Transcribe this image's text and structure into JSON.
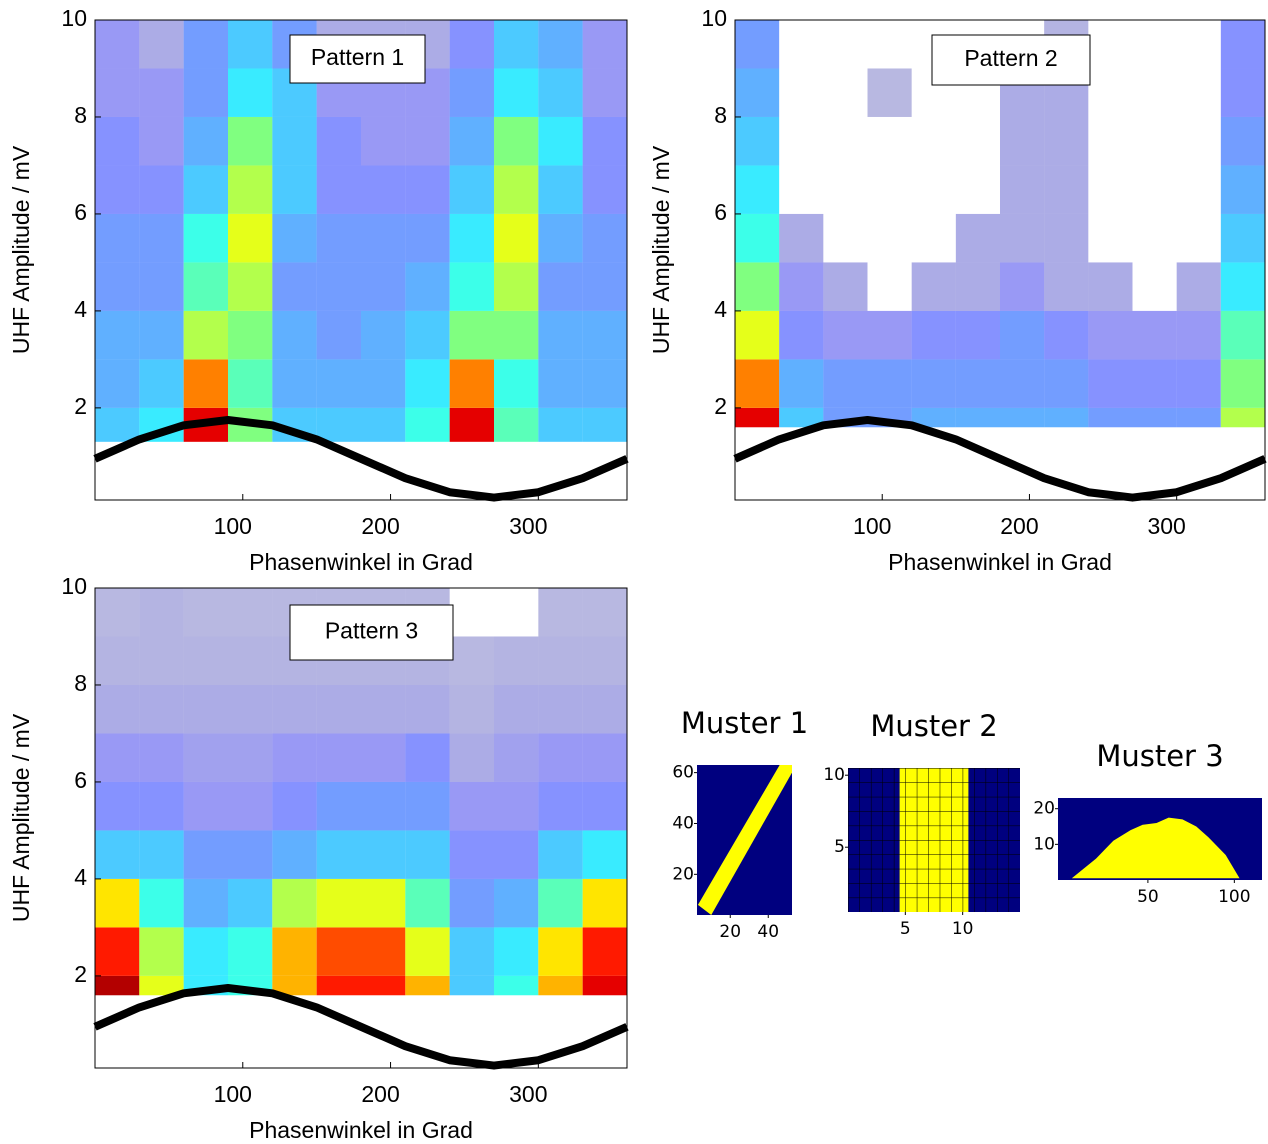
{
  "chart_data": [
    {
      "type": "heatmap",
      "annotation": "Pattern 1",
      "xlabel": "Phasenwinkel in Grad",
      "ylabel": "UHF Amplitude / mV",
      "xlim": [
        0,
        360
      ],
      "ylim": [
        0.1,
        10
      ],
      "xticks": [
        100,
        200,
        300
      ],
      "yticks": [
        2,
        4,
        6,
        8,
        10
      ],
      "xbins": [
        0,
        30,
        60,
        90,
        120,
        150,
        180,
        210,
        240,
        270,
        300,
        330,
        360
      ],
      "ybins": [
        1.3,
        2,
        3,
        4,
        5,
        6,
        7,
        8,
        9,
        10
      ],
      "density": [
        [
          0.3,
          0.35,
          0.9,
          0.5,
          0.3,
          0.3,
          0.3,
          0.4,
          0.9,
          0.45,
          0.3,
          0.3
        ],
        [
          0.25,
          0.3,
          0.75,
          0.45,
          0.25,
          0.25,
          0.25,
          0.35,
          0.75,
          0.4,
          0.25,
          0.25
        ],
        [
          0.25,
          0.25,
          0.55,
          0.5,
          0.25,
          0.2,
          0.25,
          0.3,
          0.5,
          0.5,
          0.25,
          0.25
        ],
        [
          0.2,
          0.2,
          0.45,
          0.55,
          0.2,
          0.2,
          0.2,
          0.25,
          0.4,
          0.55,
          0.2,
          0.2
        ],
        [
          0.2,
          0.2,
          0.4,
          0.6,
          0.25,
          0.2,
          0.2,
          0.2,
          0.35,
          0.6,
          0.25,
          0.2
        ],
        [
          0.15,
          0.15,
          0.3,
          0.55,
          0.3,
          0.15,
          0.15,
          0.15,
          0.3,
          0.55,
          0.3,
          0.15
        ],
        [
          0.15,
          0.1,
          0.25,
          0.5,
          0.3,
          0.15,
          0.1,
          0.1,
          0.25,
          0.5,
          0.35,
          0.15
        ],
        [
          0.1,
          0.1,
          0.2,
          0.35,
          0.3,
          0.1,
          0.1,
          0.1,
          0.2,
          0.35,
          0.3,
          0.1
        ],
        [
          0.1,
          0.05,
          0.2,
          0.3,
          0.2,
          0.05,
          0.05,
          0.05,
          0.15,
          0.3,
          0.25,
          0.1
        ]
      ],
      "x": [
        0,
        30,
        60,
        90,
        120,
        150,
        180,
        210,
        240,
        270,
        300,
        330,
        360
      ],
      "series": [
        {
          "color": "#000000",
          "values": [
            0.95,
            1.35,
            1.64,
            1.75,
            1.64,
            1.35,
            0.95,
            0.55,
            0.26,
            0.15,
            0.26,
            0.55,
            0.95
          ]
        }
      ]
    },
    {
      "type": "heatmap",
      "annotation": "Pattern 2",
      "xlabel": "Phasenwinkel in Grad",
      "ylabel": "UHF Amplitude / mV",
      "xlim": [
        0,
        360
      ],
      "ylim": [
        0.1,
        10
      ],
      "xticks": [
        100,
        200,
        300
      ],
      "yticks": [
        2,
        4,
        6,
        8,
        10
      ],
      "xbins": [
        0,
        30,
        60,
        90,
        120,
        150,
        180,
        210,
        240,
        270,
        300,
        330,
        360
      ],
      "ybins": [
        1.6,
        2,
        3,
        4,
        5,
        6,
        7,
        8,
        9,
        10
      ],
      "density": [
        [
          0.9,
          0.3,
          0.2,
          0.2,
          0.25,
          0.25,
          0.25,
          0.25,
          0.2,
          0.2,
          0.2,
          0.55
        ],
        [
          0.75,
          0.25,
          0.2,
          0.2,
          0.2,
          0.2,
          0.2,
          0.2,
          0.15,
          0.15,
          0.15,
          0.5
        ],
        [
          0.6,
          0.15,
          0.1,
          0.1,
          0.15,
          0.15,
          0.2,
          0.15,
          0.1,
          0.1,
          0.1,
          0.45
        ],
        [
          0.5,
          0.1,
          0.05,
          0,
          0.05,
          0.05,
          0.1,
          0.05,
          0.05,
          0,
          0.05,
          0.35
        ],
        [
          0.4,
          0.05,
          0,
          0,
          0,
          0.05,
          0.05,
          0.05,
          0,
          0,
          0,
          0.3
        ],
        [
          0.35,
          0,
          0,
          0,
          0,
          0,
          0.05,
          0.05,
          0,
          0,
          0,
          0.25
        ],
        [
          0.3,
          0,
          0,
          0,
          0,
          0,
          0.05,
          0.05,
          0,
          0,
          0,
          0.2
        ],
        [
          0.25,
          0,
          0,
          0.02,
          0,
          0,
          0.05,
          0.05,
          0,
          0,
          0,
          0.15
        ],
        [
          0.2,
          0,
          0,
          0,
          0,
          0,
          0,
          0.03,
          0,
          0,
          0,
          0.15
        ]
      ],
      "x": [
        0,
        30,
        60,
        90,
        120,
        150,
        180,
        210,
        240,
        270,
        300,
        330,
        360
      ],
      "series": [
        {
          "color": "#000000",
          "values": [
            0.95,
            1.35,
            1.64,
            1.75,
            1.64,
            1.35,
            0.95,
            0.55,
            0.26,
            0.15,
            0.26,
            0.55,
            0.95
          ]
        }
      ]
    },
    {
      "type": "heatmap",
      "annotation": "Pattern 3",
      "xlabel": "Phasenwinkel in Grad",
      "ylabel": "UHF Amplitude / mV",
      "xlim": [
        0,
        360
      ],
      "ylim": [
        0.1,
        10
      ],
      "xticks": [
        100,
        200,
        300
      ],
      "yticks": [
        2,
        4,
        6,
        8,
        10
      ],
      "xbins": [
        0,
        30,
        60,
        90,
        120,
        150,
        180,
        210,
        240,
        270,
        300,
        330,
        360
      ],
      "ybins": [
        1.6,
        2,
        3,
        4,
        5,
        6,
        7,
        8,
        9,
        10
      ],
      "density": [
        [
          0.95,
          0.6,
          0.35,
          0.4,
          0.7,
          0.85,
          0.85,
          0.7,
          0.3,
          0.4,
          0.7,
          0.9
        ],
        [
          0.85,
          0.55,
          0.35,
          0.4,
          0.7,
          0.8,
          0.8,
          0.6,
          0.3,
          0.35,
          0.65,
          0.85
        ],
        [
          0.65,
          0.4,
          0.25,
          0.3,
          0.55,
          0.6,
          0.6,
          0.45,
          0.2,
          0.25,
          0.45,
          0.65
        ],
        [
          0.3,
          0.3,
          0.2,
          0.2,
          0.25,
          0.3,
          0.3,
          0.3,
          0.15,
          0.15,
          0.3,
          0.35
        ],
        [
          0.15,
          0.15,
          0.1,
          0.1,
          0.15,
          0.2,
          0.2,
          0.2,
          0.1,
          0.1,
          0.15,
          0.15
        ],
        [
          0.1,
          0.1,
          0.08,
          0.08,
          0.1,
          0.1,
          0.1,
          0.15,
          0.05,
          0.08,
          0.1,
          0.1
        ],
        [
          0.05,
          0.05,
          0.05,
          0.05,
          0.05,
          0.05,
          0.05,
          0.05,
          0.03,
          0.05,
          0.05,
          0.05
        ],
        [
          0.03,
          0.03,
          0.03,
          0.03,
          0.03,
          0.03,
          0.03,
          0.03,
          0.02,
          0.03,
          0.03,
          0.03
        ],
        [
          0.02,
          0.03,
          0.02,
          0.02,
          0.02,
          0.02,
          0.02,
          0.02,
          0,
          0,
          0.02,
          0.02
        ]
      ],
      "x": [
        0,
        30,
        60,
        90,
        120,
        150,
        180,
        210,
        240,
        270,
        300,
        330,
        360
      ],
      "series": [
        {
          "color": "#000000",
          "values": [
            0.95,
            1.35,
            1.64,
            1.75,
            1.64,
            1.35,
            0.95,
            0.55,
            0.26,
            0.15,
            0.26,
            0.55,
            0.95
          ]
        }
      ]
    },
    {
      "type": "mask",
      "title": "Muster 1",
      "xlim": [
        2.5,
        52.5
      ],
      "ylim": [
        4,
        63
      ],
      "xticks": [
        20,
        40
      ],
      "yticks": [
        20,
        40,
        60
      ],
      "background": "#00007f",
      "color": "#ffff00",
      "polygon_x": [
        3,
        10,
        52.5,
        52.5,
        46
      ],
      "polygon_y": [
        8,
        4,
        60,
        63,
        63
      ]
    },
    {
      "type": "mask",
      "title": "Muster 2",
      "xlim": [
        0,
        15
      ],
      "ylim": [
        0.5,
        10.5
      ],
      "xticks": [
        5,
        10
      ],
      "yticks": [
        5,
        10
      ],
      "background": "#00007f",
      "color": "#ffff00",
      "grid": true,
      "polygon_x": [
        4.5,
        10.5,
        10.5,
        4.5
      ],
      "polygon_y": [
        0.5,
        0.5,
        10.5,
        10.5
      ]
    },
    {
      "type": "mask",
      "title": "Muster 3",
      "xlim": [
        -2,
        116
      ],
      "ylim": [
        0,
        23
      ],
      "xticks": [
        50,
        100
      ],
      "yticks": [
        10,
        20
      ],
      "background": "#00007f",
      "color": "#ffff00",
      "polygon_x": [
        6,
        20,
        30,
        40,
        47,
        55,
        62,
        70,
        78,
        85,
        95,
        103
      ],
      "polygon_y": [
        0.5,
        6,
        11,
        14,
        15.5,
        16,
        17.5,
        17,
        15,
        12,
        7,
        0.5
      ]
    }
  ]
}
